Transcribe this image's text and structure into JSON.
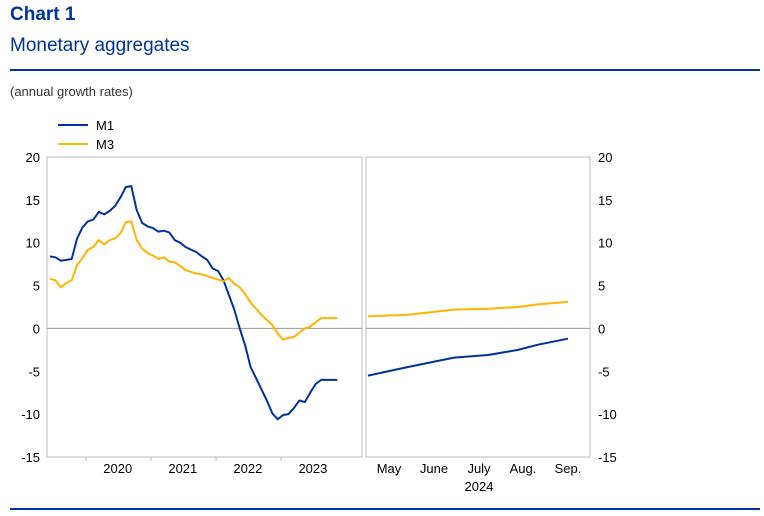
{
  "header": {
    "chart_label": "Chart 1",
    "title": "Monetary aggregates",
    "subtitle": "(annual growth rates)"
  },
  "chart_data": {
    "type": "line",
    "title": "Monetary aggregates",
    "subtitle": "(annual growth rates)",
    "ylim": [
      -15,
      20
    ],
    "y_ticks": [
      20,
      15,
      10,
      5,
      0,
      -5,
      -10,
      -15
    ],
    "legend": [
      "M1",
      "M3"
    ],
    "colors": {
      "M1": "#003299",
      "M3": "#ffb400",
      "zero_line": "#999999",
      "frame": "#bbbbbb"
    },
    "historical": {
      "x_labels": [
        "2020",
        "2021",
        "2022",
        "2023"
      ],
      "months": [
        "2019-06",
        "2019-07",
        "2019-08",
        "2019-09",
        "2019-10",
        "2019-11",
        "2019-12",
        "2020-01",
        "2020-02",
        "2020-03",
        "2020-04",
        "2020-05",
        "2020-06",
        "2020-07",
        "2020-08",
        "2020-09",
        "2020-10",
        "2020-11",
        "2020-12",
        "2021-01",
        "2021-02",
        "2021-03",
        "2021-04",
        "2021-05",
        "2021-06",
        "2021-07",
        "2021-08",
        "2021-09",
        "2021-10",
        "2021-11",
        "2021-12",
        "2022-01",
        "2022-02",
        "2022-03",
        "2022-04",
        "2022-05",
        "2022-06",
        "2022-07",
        "2022-08",
        "2022-09",
        "2022-10",
        "2022-11",
        "2022-12",
        "2023-01",
        "2023-02",
        "2023-03",
        "2023-04",
        "2023-05",
        "2023-06",
        "2023-07",
        "2023-08",
        "2023-09",
        "2023-10",
        "2023-11",
        "2023-12",
        "2024-01",
        "2024-02",
        "2024-03"
      ],
      "series": [
        {
          "name": "M1",
          "values": [
            8.4,
            8.3,
            7.9,
            8.0,
            8.1,
            10.5,
            11.8,
            12.5,
            12.7,
            13.6,
            13.3,
            13.7,
            14.3,
            15.3,
            16.5,
            16.6,
            13.8,
            12.3,
            11.9,
            11.7,
            11.3,
            11.4,
            11.2,
            10.3,
            10.0,
            9.5,
            9.2,
            8.9,
            8.4,
            8.0,
            7.0,
            6.7,
            5.6,
            3.9,
            2.2,
            0.0,
            -2.0,
            -4.5,
            -5.8,
            -7.1,
            -8.4,
            -9.9,
            -10.6,
            -10.1,
            -10.0,
            -9.3,
            -8.4,
            -8.6,
            -7.5,
            -6.5,
            -6.0,
            -6.0,
            -6.0,
            -6.0,
            -6.0,
            -6.0,
            -6.0,
            -6.0
          ]
        },
        {
          "name": "M3",
          "values": [
            5.8,
            5.6,
            4.8,
            5.3,
            5.6,
            7.4,
            8.2,
            9.2,
            9.5,
            10.3,
            9.8,
            10.3,
            10.5,
            11.1,
            12.4,
            12.5,
            10.3,
            9.3,
            8.8,
            8.5,
            8.1,
            8.3,
            7.8,
            7.7,
            7.3,
            6.8,
            6.6,
            6.4,
            6.3,
            6.1,
            5.9,
            5.7,
            5.5,
            5.9,
            5.2,
            4.8,
            4.0,
            3.0,
            2.3,
            1.6,
            1.0,
            0.4,
            -0.6,
            -1.3,
            -1.1,
            -1.0,
            -0.5,
            0.0,
            0.2,
            0.7,
            1.2,
            1.2,
            1.2,
            1.2,
            1.2,
            1.2,
            1.2,
            1.2
          ]
        }
      ]
    },
    "projection": {
      "x_labels": [
        "May",
        "June",
        "July",
        "Aug.",
        "Sep."
      ],
      "year_label": "2024",
      "series": [
        {
          "name": "M1",
          "values": [
            -5.5,
            -4.5,
            -3.4,
            -3.1,
            -2.5,
            -1.9,
            -1.2
          ]
        },
        {
          "name": "M3",
          "values": [
            1.4,
            1.6,
            2.2,
            2.3,
            2.5,
            2.8,
            3.1
          ]
        }
      ],
      "positions": [
        0,
        0.2,
        0.43,
        0.6,
        0.75,
        0.85,
        1.0
      ]
    }
  }
}
